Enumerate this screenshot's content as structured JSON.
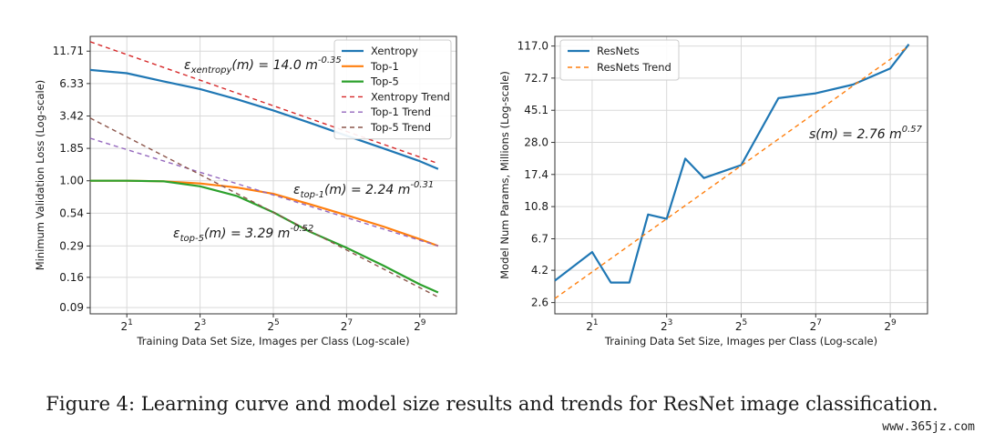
{
  "caption": "Figure 4: Learning curve and model size results and trends for ResNet image classification.",
  "watermark": "www.365jz.com",
  "colors": {
    "xentropy": "#1f77b4",
    "top1": "#ff7f0e",
    "top5": "#2ca02c",
    "xentropy_trend": "#d62728",
    "top1_trend": "#9467bd",
    "top5_trend": "#8c564b",
    "resnets": "#1f77b4",
    "resnets_trend": "#ff7f0e"
  },
  "chart_data": [
    {
      "type": "line",
      "xlabel": "Training Data Set Size, Images per Class (Log-scale)",
      "ylabel": "Minimum Validation Loss (Log-scale)",
      "x_scale": "log2",
      "y_scale": "log",
      "xlim": [
        1,
        1024
      ],
      "ylim": [
        0.08,
        15.5
      ],
      "x_ticks": [
        2,
        8,
        32,
        128,
        512
      ],
      "x_tick_labels": [
        "2^1",
        "2^3",
        "2^5",
        "2^7",
        "2^9"
      ],
      "y_ticks": [
        0.09,
        0.16,
        0.29,
        0.54,
        1.0,
        1.85,
        3.42,
        6.33,
        11.71
      ],
      "y_tick_labels": [
        "0.09",
        "0.16",
        "0.29",
        "0.54",
        "1.00",
        "1.85",
        "3.42",
        "6.33",
        "11.71"
      ],
      "grid": true,
      "legend_position": "top-right",
      "series": [
        {
          "name": "Xentropy",
          "key": "xentropy",
          "style": "solid",
          "x": [
            1,
            2,
            4,
            8,
            16,
            32,
            64,
            128,
            256,
            512,
            724
          ],
          "y": [
            8.2,
            7.7,
            6.6,
            5.7,
            4.7,
            3.8,
            3.0,
            2.35,
            1.85,
            1.45,
            1.25
          ]
        },
        {
          "name": "Top-1",
          "key": "top1",
          "style": "solid",
          "x": [
            1,
            2,
            4,
            8,
            16,
            32,
            64,
            128,
            256,
            512,
            724
          ],
          "y": [
            1.0,
            1.0,
            0.99,
            0.95,
            0.88,
            0.78,
            0.64,
            0.52,
            0.42,
            0.33,
            0.29
          ]
        },
        {
          "name": "Top-5",
          "key": "top5",
          "style": "solid",
          "x": [
            1,
            2,
            4,
            8,
            16,
            32,
            64,
            128,
            256,
            512,
            724
          ],
          "y": [
            1.0,
            1.0,
            0.99,
            0.9,
            0.75,
            0.55,
            0.38,
            0.28,
            0.2,
            0.14,
            0.12
          ]
        },
        {
          "name": "Xentropy Trend",
          "key": "xentropy_trend",
          "style": "dashed",
          "x": [
            1,
            724
          ],
          "y": [
            14.0,
            1.39
          ]
        },
        {
          "name": "Top-1 Trend",
          "key": "top1_trend",
          "style": "dashed",
          "x": [
            1,
            724
          ],
          "y": [
            2.24,
            0.29
          ]
        },
        {
          "name": "Top-5 Trend",
          "key": "top5_trend",
          "style": "dashed",
          "x": [
            1,
            724
          ],
          "y": [
            3.29,
            0.11
          ]
        }
      ],
      "annotations": [
        {
          "key": "xentropy",
          "lhs": "ε",
          "sub": "xentropy",
          "mid": "(m) = 14.0 m",
          "sup": "-0.35"
        },
        {
          "key": "top1",
          "lhs": "ε",
          "sub": "top-1",
          "mid": "(m) = 2.24 m",
          "sup": "-0.31"
        },
        {
          "key": "top5",
          "lhs": "ε",
          "sub": "top-5",
          "mid": "(m) = 3.29 m",
          "sup": "-0.52"
        }
      ]
    },
    {
      "type": "line",
      "xlabel": "Training Data Set Size, Images per Class (Log-scale)",
      "ylabel": "Model Num Params, Millions (Log-scale)",
      "x_scale": "log2",
      "y_scale": "log",
      "xlim": [
        1,
        1024
      ],
      "ylim": [
        2.2,
        135
      ],
      "x_ticks": [
        2,
        8,
        32,
        128,
        512
      ],
      "x_tick_labels": [
        "2^1",
        "2^3",
        "2^5",
        "2^7",
        "2^9"
      ],
      "y_ticks": [
        2.6,
        4.2,
        6.7,
        10.8,
        17.4,
        28.0,
        45.1,
        72.7,
        117.0
      ],
      "y_tick_labels": [
        "2.6",
        "4.2",
        "6.7",
        "10.8",
        "17.4",
        "28.0",
        "45.1",
        "72.7",
        "117.0"
      ],
      "grid": true,
      "legend_position": "top-left",
      "series": [
        {
          "name": "ResNets",
          "key": "resnets",
          "style": "solid",
          "x": [
            1,
            2,
            2.83,
            4,
            5.66,
            8,
            11.3,
            16,
            32,
            64,
            128,
            256,
            512,
            724
          ],
          "y": [
            3.6,
            5.5,
            3.5,
            3.5,
            9.6,
            9.0,
            22.0,
            16.5,
            20.0,
            54.0,
            58.0,
            66.0,
            84.0,
            120.0
          ]
        },
        {
          "name": "ResNets Trend",
          "key": "resnets_trend",
          "style": "dashed",
          "x": [
            1,
            724
          ],
          "y": [
            2.76,
            117.0
          ]
        }
      ],
      "annotations": [
        {
          "key": "resnets",
          "lhs": "s(m) = 2.76 m",
          "sup": "0.57"
        }
      ]
    }
  ]
}
